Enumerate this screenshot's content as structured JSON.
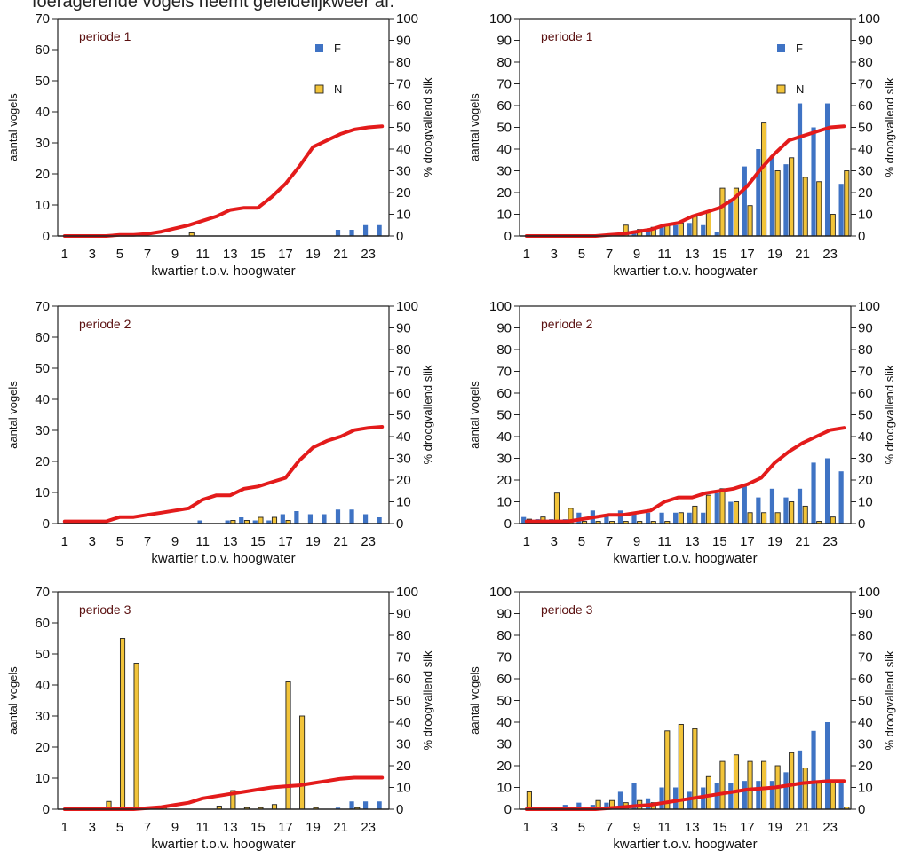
{
  "caption": "foeragerende vogels neemt geleidelijkweer af.",
  "colors": {
    "F": "#3f73c4",
    "N": "#f2c43a",
    "line": "#e31b1b",
    "period": "#5a1010"
  },
  "chart_data": [
    {
      "type": "bar",
      "panel": "top-left",
      "period_label": "periode 1",
      "xlabel": "kwartier t.o.v. hoogwater",
      "ylabel": "aantal vogels",
      "y2label": "% droogvallend slik",
      "x": [
        1,
        2,
        3,
        4,
        5,
        6,
        7,
        8,
        9,
        10,
        11,
        12,
        13,
        14,
        15,
        16,
        17,
        18,
        19,
        20,
        21,
        22,
        23,
        24
      ],
      "x_ticks": [
        "1",
        "3",
        "5",
        "7",
        "9",
        "11",
        "13",
        "15",
        "17",
        "19",
        "21",
        "23"
      ],
      "ylim": [
        0,
        70
      ],
      "y_ticks": [
        "0",
        "10",
        "20",
        "30",
        "40",
        "50",
        "60",
        "70"
      ],
      "y2lim": [
        0,
        100
      ],
      "y2_ticks": [
        "0",
        "10",
        "20",
        "30",
        "40",
        "50",
        "60",
        "70",
        "80",
        "90",
        "100"
      ],
      "legend": [
        "F",
        "N"
      ],
      "series": [
        {
          "name": "F",
          "values": [
            0,
            0,
            0,
            0,
            0,
            0,
            0,
            0,
            0,
            0,
            0,
            0,
            0,
            0,
            0,
            0,
            0,
            0,
            0,
            0,
            2,
            2,
            3.5,
            3.5
          ]
        },
        {
          "name": "N",
          "values": [
            0,
            0,
            0,
            0,
            0,
            0,
            0,
            0,
            0,
            1,
            0,
            0,
            0,
            0,
            0,
            0,
            0,
            0,
            0,
            0,
            0,
            0,
            0,
            0
          ]
        }
      ],
      "line": [
        0,
        0,
        0,
        0,
        0.5,
        0.5,
        1,
        2,
        3.5,
        5,
        7,
        9,
        12,
        13,
        13,
        18,
        24,
        32,
        41,
        44,
        47,
        49,
        50,
        50.5
      ]
    },
    {
      "type": "bar",
      "panel": "top-right",
      "period_label": "periode 1",
      "xlabel": "kwartier t.o.v. hoogwater",
      "ylabel": "aantal vogels",
      "y2label": "% droogvallend slik",
      "x": [
        1,
        2,
        3,
        4,
        5,
        6,
        7,
        8,
        9,
        10,
        11,
        12,
        13,
        14,
        15,
        16,
        17,
        18,
        19,
        20,
        21,
        22,
        23,
        24
      ],
      "x_ticks": [
        "1",
        "3",
        "5",
        "7",
        "9",
        "11",
        "13",
        "15",
        "17",
        "19",
        "21",
        "23"
      ],
      "ylim": [
        0,
        100
      ],
      "y_ticks": [
        "0",
        "10",
        "20",
        "30",
        "40",
        "50",
        "60",
        "70",
        "80",
        "90",
        "100"
      ],
      "y2lim": [
        0,
        100
      ],
      "y2_ticks": [
        "0",
        "10",
        "20",
        "30",
        "40",
        "50",
        "60",
        "70",
        "80",
        "90",
        "100"
      ],
      "legend": [
        "F",
        "N"
      ],
      "series": [
        {
          "name": "F",
          "values": [
            0,
            0,
            0,
            0,
            0,
            0,
            1,
            1,
            2,
            3,
            5,
            5,
            6,
            5,
            2,
            17,
            32,
            40,
            37,
            33,
            61,
            50,
            61,
            24
          ]
        },
        {
          "name": "N",
          "values": [
            0,
            0,
            0,
            0,
            0,
            0,
            1,
            5,
            3,
            4,
            5,
            6,
            9,
            11,
            22,
            22,
            14,
            52,
            30,
            36,
            27,
            25,
            10,
            30
          ]
        }
      ],
      "line": [
        0,
        0,
        0,
        0,
        0,
        0,
        0.5,
        1,
        2,
        3,
        5,
        6,
        9,
        11,
        13,
        17,
        23,
        31,
        38,
        44,
        46,
        48,
        50,
        50.5
      ]
    },
    {
      "type": "bar",
      "panel": "middle-left",
      "period_label": "periode 2",
      "xlabel": "kwartier t.o.v. hoogwater",
      "ylabel": "aantal vogels",
      "y2label": "% droogvallend slik",
      "x": [
        1,
        2,
        3,
        4,
        5,
        6,
        7,
        8,
        9,
        10,
        11,
        12,
        13,
        14,
        15,
        16,
        17,
        18,
        19,
        20,
        21,
        22,
        23,
        24
      ],
      "x_ticks": [
        "1",
        "3",
        "5",
        "7",
        "9",
        "11",
        "13",
        "15",
        "17",
        "19",
        "21",
        "23"
      ],
      "ylim": [
        0,
        70
      ],
      "y_ticks": [
        "0",
        "10",
        "20",
        "30",
        "40",
        "50",
        "60",
        "70"
      ],
      "y2lim": [
        0,
        100
      ],
      "y2_ticks": [
        "0",
        "10",
        "20",
        "30",
        "40",
        "50",
        "60",
        "70",
        "80",
        "90",
        "100"
      ],
      "legend": [],
      "series": [
        {
          "name": "F",
          "values": [
            0,
            0,
            0,
            0,
            0,
            0,
            0,
            0,
            0,
            0,
            1,
            0,
            1,
            2,
            1,
            1,
            3,
            4,
            3,
            3,
            4.5,
            4.5,
            3,
            2
          ]
        },
        {
          "name": "N",
          "values": [
            0,
            0,
            0,
            0,
            0,
            0,
            0,
            0,
            0,
            0,
            0,
            0,
            1,
            1,
            2,
            2,
            1,
            0,
            0,
            0,
            0,
            0,
            0,
            0
          ]
        }
      ],
      "line": [
        1,
        1,
        1,
        1,
        3,
        3,
        4,
        5,
        6,
        7,
        11,
        13,
        13,
        16,
        17,
        19,
        21,
        29,
        35,
        38,
        40,
        43,
        44,
        44.5
      ]
    },
    {
      "type": "bar",
      "panel": "middle-right",
      "period_label": "periode 2",
      "xlabel": "kwartier t.o.v. hoogwater",
      "ylabel": "aantal vogels",
      "y2label": "% droogvallend slik",
      "x": [
        1,
        2,
        3,
        4,
        5,
        6,
        7,
        8,
        9,
        10,
        11,
        12,
        13,
        14,
        15,
        16,
        17,
        18,
        19,
        20,
        21,
        22,
        23,
        24
      ],
      "x_ticks": [
        "1",
        "3",
        "5",
        "7",
        "9",
        "11",
        "13",
        "15",
        "17",
        "19",
        "21",
        "23"
      ],
      "ylim": [
        0,
        100
      ],
      "y_ticks": [
        "0",
        "10",
        "20",
        "30",
        "40",
        "50",
        "60",
        "70",
        "80",
        "90",
        "100"
      ],
      "y2lim": [
        0,
        100
      ],
      "y2_ticks": [
        "0",
        "10",
        "20",
        "30",
        "40",
        "50",
        "60",
        "70",
        "80",
        "90",
        "100"
      ],
      "legend": [],
      "series": [
        {
          "name": "F",
          "values": [
            3,
            2,
            2,
            2,
            5,
            6,
            4,
            6,
            5,
            5,
            5,
            5,
            5,
            5,
            14,
            10,
            18,
            12,
            16,
            12,
            16,
            28,
            30,
            24
          ]
        },
        {
          "name": "N",
          "values": [
            2,
            3,
            14,
            7,
            1,
            1,
            1,
            1,
            1,
            1,
            1,
            5,
            8,
            13,
            16,
            10,
            5,
            5,
            5,
            10,
            8,
            1,
            3,
            0
          ]
        }
      ],
      "line": [
        1,
        1,
        1,
        1,
        2,
        3,
        4,
        4,
        5,
        6,
        10,
        12,
        12,
        14,
        15,
        16,
        18,
        21,
        28,
        33,
        37,
        40,
        43,
        44
      ]
    },
    {
      "type": "bar",
      "panel": "bottom-left",
      "period_label": "periode 3",
      "xlabel": "kwartier t.o.v. hoogwater",
      "ylabel": "aantal vogels",
      "y2label": "% droogvallend slik",
      "x": [
        1,
        2,
        3,
        4,
        5,
        6,
        7,
        8,
        9,
        10,
        11,
        12,
        13,
        14,
        15,
        16,
        17,
        18,
        19,
        20,
        21,
        22,
        23,
        24
      ],
      "x_ticks": [
        "1",
        "3",
        "5",
        "7",
        "9",
        "11",
        "13",
        "15",
        "17",
        "19",
        "21",
        "23"
      ],
      "ylim": [
        0,
        70
      ],
      "y_ticks": [
        "0",
        "10",
        "20",
        "30",
        "40",
        "50",
        "60",
        "70"
      ],
      "y2lim": [
        0,
        100
      ],
      "y2_ticks": [
        "0",
        "10",
        "20",
        "30",
        "40",
        "50",
        "60",
        "70",
        "80",
        "90",
        "100"
      ],
      "legend": [],
      "series": [
        {
          "name": "F",
          "values": [
            0,
            0,
            0,
            0,
            0,
            0,
            0,
            0,
            0,
            0,
            0,
            0,
            0,
            0,
            0,
            0,
            0,
            0,
            0,
            0,
            0.5,
            2.5,
            2.5,
            2.5
          ]
        },
        {
          "name": "N",
          "values": [
            0,
            0,
            0,
            2.5,
            55,
            47,
            0.5,
            0.5,
            0,
            0,
            0,
            1,
            6,
            0.5,
            0.5,
            1.5,
            41,
            30,
            0.5,
            0,
            0,
            0.5,
            0,
            0
          ]
        }
      ],
      "line": [
        0,
        0,
        0,
        0,
        0,
        0,
        0.5,
        1,
        2,
        3,
        5,
        6,
        7,
        8,
        9,
        10,
        10.5,
        11,
        12,
        13,
        14,
        14.5,
        14.5,
        14.5
      ]
    },
    {
      "type": "bar",
      "panel": "bottom-right",
      "period_label": "periode 3",
      "xlabel": "kwartier t.o.v. hoogwater",
      "ylabel": "aantal vogels",
      "y2label": "% droogvallend slik",
      "x": [
        1,
        2,
        3,
        4,
        5,
        6,
        7,
        8,
        9,
        10,
        11,
        12,
        13,
        14,
        15,
        16,
        17,
        18,
        19,
        20,
        21,
        22,
        23,
        24
      ],
      "x_ticks": [
        "1",
        "3",
        "5",
        "7",
        "9",
        "11",
        "13",
        "15",
        "17",
        "19",
        "21",
        "23"
      ],
      "ylim": [
        0,
        100
      ],
      "y_ticks": [
        "0",
        "10",
        "20",
        "30",
        "40",
        "50",
        "60",
        "70",
        "80",
        "90",
        "100"
      ],
      "y2lim": [
        0,
        100
      ],
      "y2_ticks": [
        "0",
        "10",
        "20",
        "30",
        "40",
        "50",
        "60",
        "70",
        "80",
        "90",
        "100"
      ],
      "legend": [],
      "series": [
        {
          "name": "F",
          "values": [
            0,
            1,
            0,
            2,
            3,
            2,
            3,
            8,
            12,
            5,
            10,
            10,
            8,
            10,
            12,
            12,
            13,
            13,
            13,
            17,
            27,
            36,
            40,
            13
          ]
        },
        {
          "name": "N",
          "values": [
            8,
            1,
            0,
            1,
            1,
            4,
            4,
            3,
            4,
            3,
            36,
            39,
            37,
            15,
            22,
            25,
            22,
            22,
            20,
            26,
            19,
            12,
            13,
            1
          ]
        }
      ],
      "line": [
        0,
        0,
        0,
        0,
        0,
        0,
        0.5,
        1,
        1.5,
        2,
        3,
        4,
        5,
        6,
        7,
        8,
        9,
        9.5,
        10,
        11,
        12,
        12.5,
        13,
        13
      ]
    }
  ]
}
